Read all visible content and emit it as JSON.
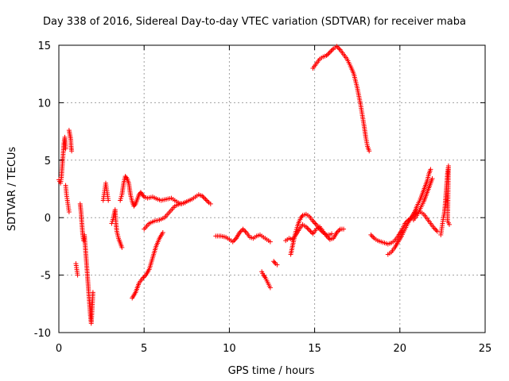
{
  "chart_data": {
    "type": "scatter",
    "title": "Day 338 of 2016, Sidereal Day-to-day VTEC variation (SDTVAR) for receiver maba",
    "xlabel": "GPS time / hours",
    "ylabel": "SDTVAR / TECUs",
    "xlim": [
      0,
      25
    ],
    "ylim": [
      -10,
      15
    ],
    "xticks": [
      0,
      5,
      10,
      15,
      20,
      25
    ],
    "yticks": [
      -10,
      -5,
      0,
      5,
      10,
      15
    ],
    "grid": true,
    "marker": "+",
    "color": "#ff0000",
    "series": [
      {
        "name": "SDTVAR",
        "segments": [
          [
            [
              0.0,
              3.3
            ],
            [
              0.1,
              3.0
            ],
            [
              0.15,
              3.5
            ],
            [
              0.2,
              4.5
            ],
            [
              0.25,
              5.5
            ],
            [
              0.3,
              6.5
            ],
            [
              0.35,
              7.0
            ],
            [
              0.4,
              6.0
            ]
          ],
          [
            [
              0.6,
              7.6
            ],
            [
              0.65,
              7.2
            ],
            [
              0.7,
              6.8
            ],
            [
              0.72,
              6.2
            ],
            [
              0.75,
              5.8
            ]
          ],
          [
            [
              0.4,
              2.8
            ],
            [
              0.45,
              2.0
            ],
            [
              0.5,
              1.5
            ],
            [
              0.55,
              1.0
            ],
            [
              0.6,
              0.5
            ]
          ],
          [
            [
              1.0,
              -4.0
            ],
            [
              1.05,
              -4.5
            ],
            [
              1.1,
              -5.0
            ]
          ],
          [
            [
              1.25,
              1.2
            ],
            [
              1.3,
              0.5
            ],
            [
              1.35,
              -0.5
            ],
            [
              1.4,
              -1.5
            ],
            [
              1.45,
              -2.0
            ],
            [
              1.5,
              -1.5
            ],
            [
              1.55,
              -2.5
            ],
            [
              1.6,
              -3.5
            ],
            [
              1.65,
              -4.5
            ],
            [
              1.7,
              -5.5
            ],
            [
              1.75,
              -6.5
            ],
            [
              1.8,
              -7.5
            ],
            [
              1.85,
              -8.5
            ],
            [
              1.9,
              -9.2
            ],
            [
              1.95,
              -8.0
            ],
            [
              2.0,
              -6.5
            ]
          ],
          [
            [
              2.6,
              1.5
            ],
            [
              2.65,
              2.0
            ],
            [
              2.7,
              2.5
            ],
            [
              2.75,
              3.0
            ],
            [
              2.8,
              2.5
            ],
            [
              2.85,
              2.0
            ],
            [
              2.9,
              1.5
            ]
          ],
          [
            [
              3.1,
              -0.5
            ],
            [
              3.2,
              0.0
            ],
            [
              3.3,
              0.7
            ],
            [
              3.35,
              -0.5
            ],
            [
              3.4,
              -1.2
            ],
            [
              3.5,
              -1.8
            ],
            [
              3.6,
              -2.2
            ],
            [
              3.7,
              -2.6
            ]
          ],
          [
            [
              3.6,
              1.5
            ],
            [
              3.7,
              2.0
            ],
            [
              3.8,
              3.0
            ],
            [
              3.9,
              3.6
            ],
            [
              4.0,
              3.4
            ],
            [
              4.1,
              3.0
            ],
            [
              4.2,
              2.0
            ],
            [
              4.3,
              1.4
            ],
            [
              4.4,
              1.0
            ],
            [
              4.5,
              1.2
            ],
            [
              4.6,
              1.6
            ],
            [
              4.7,
              2.0
            ],
            [
              4.8,
              2.2
            ],
            [
              4.9,
              2.0
            ],
            [
              5.0,
              1.8
            ],
            [
              5.2,
              1.7
            ],
            [
              5.5,
              1.8
            ],
            [
              5.8,
              1.6
            ],
            [
              6.0,
              1.5
            ],
            [
              6.3,
              1.6
            ],
            [
              6.6,
              1.7
            ],
            [
              6.8,
              1.5
            ],
            [
              7.0,
              1.3
            ],
            [
              7.2,
              1.2
            ],
            [
              7.5,
              1.4
            ],
            [
              7.8,
              1.6
            ],
            [
              8.0,
              1.8
            ],
            [
              8.2,
              2.0
            ],
            [
              8.4,
              1.9
            ],
            [
              8.6,
              1.6
            ],
            [
              8.8,
              1.3
            ],
            [
              8.9,
              1.2
            ]
          ],
          [
            [
              4.3,
              -7.0
            ],
            [
              4.5,
              -6.5
            ],
            [
              4.7,
              -5.7
            ],
            [
              4.9,
              -5.3
            ],
            [
              5.1,
              -5.0
            ],
            [
              5.3,
              -4.5
            ],
            [
              5.5,
              -3.5
            ],
            [
              5.7,
              -2.5
            ],
            [
              5.9,
              -1.8
            ],
            [
              6.1,
              -1.3
            ]
          ],
          [
            [
              5.0,
              -1.0
            ],
            [
              5.3,
              -0.5
            ],
            [
              5.6,
              -0.3
            ],
            [
              5.9,
              -0.2
            ],
            [
              6.2,
              0.0
            ],
            [
              6.5,
              0.5
            ],
            [
              6.8,
              1.0
            ],
            [
              7.1,
              1.2
            ],
            [
              7.4,
              1.3
            ]
          ],
          [
            [
              9.2,
              -1.6
            ],
            [
              9.5,
              -1.6
            ],
            [
              9.8,
              -1.7
            ],
            [
              10.0,
              -1.9
            ],
            [
              10.2,
              -2.1
            ],
            [
              10.4,
              -1.8
            ],
            [
              10.6,
              -1.3
            ],
            [
              10.8,
              -1.0
            ],
            [
              11.0,
              -1.3
            ],
            [
              11.2,
              -1.7
            ],
            [
              11.4,
              -1.8
            ],
            [
              11.6,
              -1.6
            ],
            [
              11.8,
              -1.5
            ],
            [
              12.0,
              -1.7
            ],
            [
              12.2,
              -1.9
            ],
            [
              12.4,
              -2.1
            ]
          ],
          [
            [
              11.9,
              -4.7
            ],
            [
              12.0,
              -5.0
            ],
            [
              12.1,
              -5.2
            ],
            [
              12.2,
              -5.5
            ],
            [
              12.3,
              -5.8
            ],
            [
              12.4,
              -6.1
            ]
          ],
          [
            [
              12.6,
              -3.8
            ],
            [
              12.7,
              -4.0
            ],
            [
              12.8,
              -4.1
            ]
          ],
          [
            [
              13.3,
              -2.0
            ],
            [
              13.5,
              -1.8
            ],
            [
              13.7,
              -1.9
            ],
            [
              13.9,
              -1.5
            ],
            [
              14.1,
              -1.0
            ],
            [
              14.3,
              -0.6
            ],
            [
              14.5,
              -0.8
            ],
            [
              14.7,
              -1.1
            ],
            [
              14.9,
              -1.4
            ],
            [
              15.1,
              -1.0
            ],
            [
              15.3,
              -0.8
            ],
            [
              15.5,
              -1.2
            ],
            [
              15.7,
              -1.6
            ],
            [
              15.9,
              -1.9
            ],
            [
              16.1,
              -1.8
            ],
            [
              16.3,
              -1.3
            ],
            [
              16.5,
              -1.0
            ],
            [
              16.7,
              -1.0
            ]
          ],
          [
            [
              13.6,
              -3.2
            ],
            [
              13.7,
              -2.5
            ],
            [
              13.8,
              -1.8
            ],
            [
              13.9,
              -1.2
            ],
            [
              14.0,
              -0.7
            ],
            [
              14.1,
              -0.3
            ],
            [
              14.2,
              0.0
            ],
            [
              14.3,
              0.2
            ],
            [
              14.5,
              0.3
            ],
            [
              14.7,
              0.1
            ],
            [
              14.9,
              -0.3
            ],
            [
              15.1,
              -0.6
            ],
            [
              15.3,
              -1.0
            ],
            [
              15.5,
              -1.3
            ],
            [
              15.7,
              -1.5
            ],
            [
              15.9,
              -1.5
            ],
            [
              16.0,
              -1.4
            ]
          ],
          [
            [
              14.9,
              13.0
            ],
            [
              15.1,
              13.4
            ],
            [
              15.3,
              13.8
            ],
            [
              15.5,
              14.0
            ],
            [
              15.7,
              14.1
            ],
            [
              15.9,
              14.4
            ],
            [
              16.1,
              14.7
            ],
            [
              16.3,
              14.9
            ],
            [
              16.5,
              14.6
            ],
            [
              16.7,
              14.2
            ],
            [
              16.9,
              13.8
            ],
            [
              17.1,
              13.2
            ],
            [
              17.3,
              12.5
            ],
            [
              17.5,
              11.3
            ],
            [
              17.7,
              9.8
            ],
            [
              17.9,
              8.0
            ],
            [
              18.0,
              7.0
            ],
            [
              18.1,
              6.2
            ],
            [
              18.2,
              5.8
            ]
          ],
          [
            [
              18.3,
              -1.5
            ],
            [
              18.5,
              -1.8
            ],
            [
              18.7,
              -2.0
            ],
            [
              18.9,
              -2.1
            ],
            [
              19.1,
              -2.2
            ],
            [
              19.3,
              -2.3
            ],
            [
              19.5,
              -2.2
            ],
            [
              19.7,
              -2.0
            ],
            [
              19.9,
              -1.6
            ],
            [
              20.1,
              -1.1
            ],
            [
              20.3,
              -0.5
            ],
            [
              20.5,
              -0.2
            ],
            [
              20.7,
              0.0
            ],
            [
              20.9,
              0.3
            ],
            [
              21.0,
              0.5
            ],
            [
              21.2,
              0.5
            ],
            [
              21.4,
              0.3
            ],
            [
              21.6,
              -0.1
            ],
            [
              21.8,
              -0.5
            ],
            [
              22.0,
              -0.9
            ],
            [
              22.2,
              -1.2
            ]
          ],
          [
            [
              19.3,
              -3.2
            ],
            [
              19.5,
              -3.0
            ],
            [
              19.7,
              -2.6
            ],
            [
              19.9,
              -2.1
            ],
            [
              20.1,
              -1.6
            ],
            [
              20.3,
              -1.0
            ],
            [
              20.5,
              -0.4
            ],
            [
              20.7,
              0.1
            ],
            [
              20.9,
              0.6
            ],
            [
              21.0,
              1.0
            ],
            [
              21.2,
              1.6
            ],
            [
              21.4,
              2.4
            ],
            [
              21.6,
              3.2
            ],
            [
              21.7,
              3.8
            ],
            [
              21.8,
              4.2
            ]
          ],
          [
            [
              20.8,
              -0.2
            ],
            [
              21.0,
              0.2
            ],
            [
              21.2,
              0.8
            ],
            [
              21.4,
              1.4
            ],
            [
              21.6,
              2.2
            ],
            [
              21.8,
              3.0
            ],
            [
              21.9,
              3.4
            ]
          ],
          [
            [
              22.4,
              -1.5
            ],
            [
              22.45,
              -1.0
            ],
            [
              22.5,
              -0.5
            ],
            [
              22.55,
              0.0
            ],
            [
              22.6,
              0.3
            ],
            [
              22.65,
              1.0
            ],
            [
              22.7,
              2.0
            ],
            [
              22.75,
              3.0
            ],
            [
              22.8,
              4.0
            ],
            [
              22.85,
              4.5
            ],
            [
              22.8,
              -0.3
            ],
            [
              22.9,
              -0.6
            ]
          ]
        ]
      }
    ]
  }
}
